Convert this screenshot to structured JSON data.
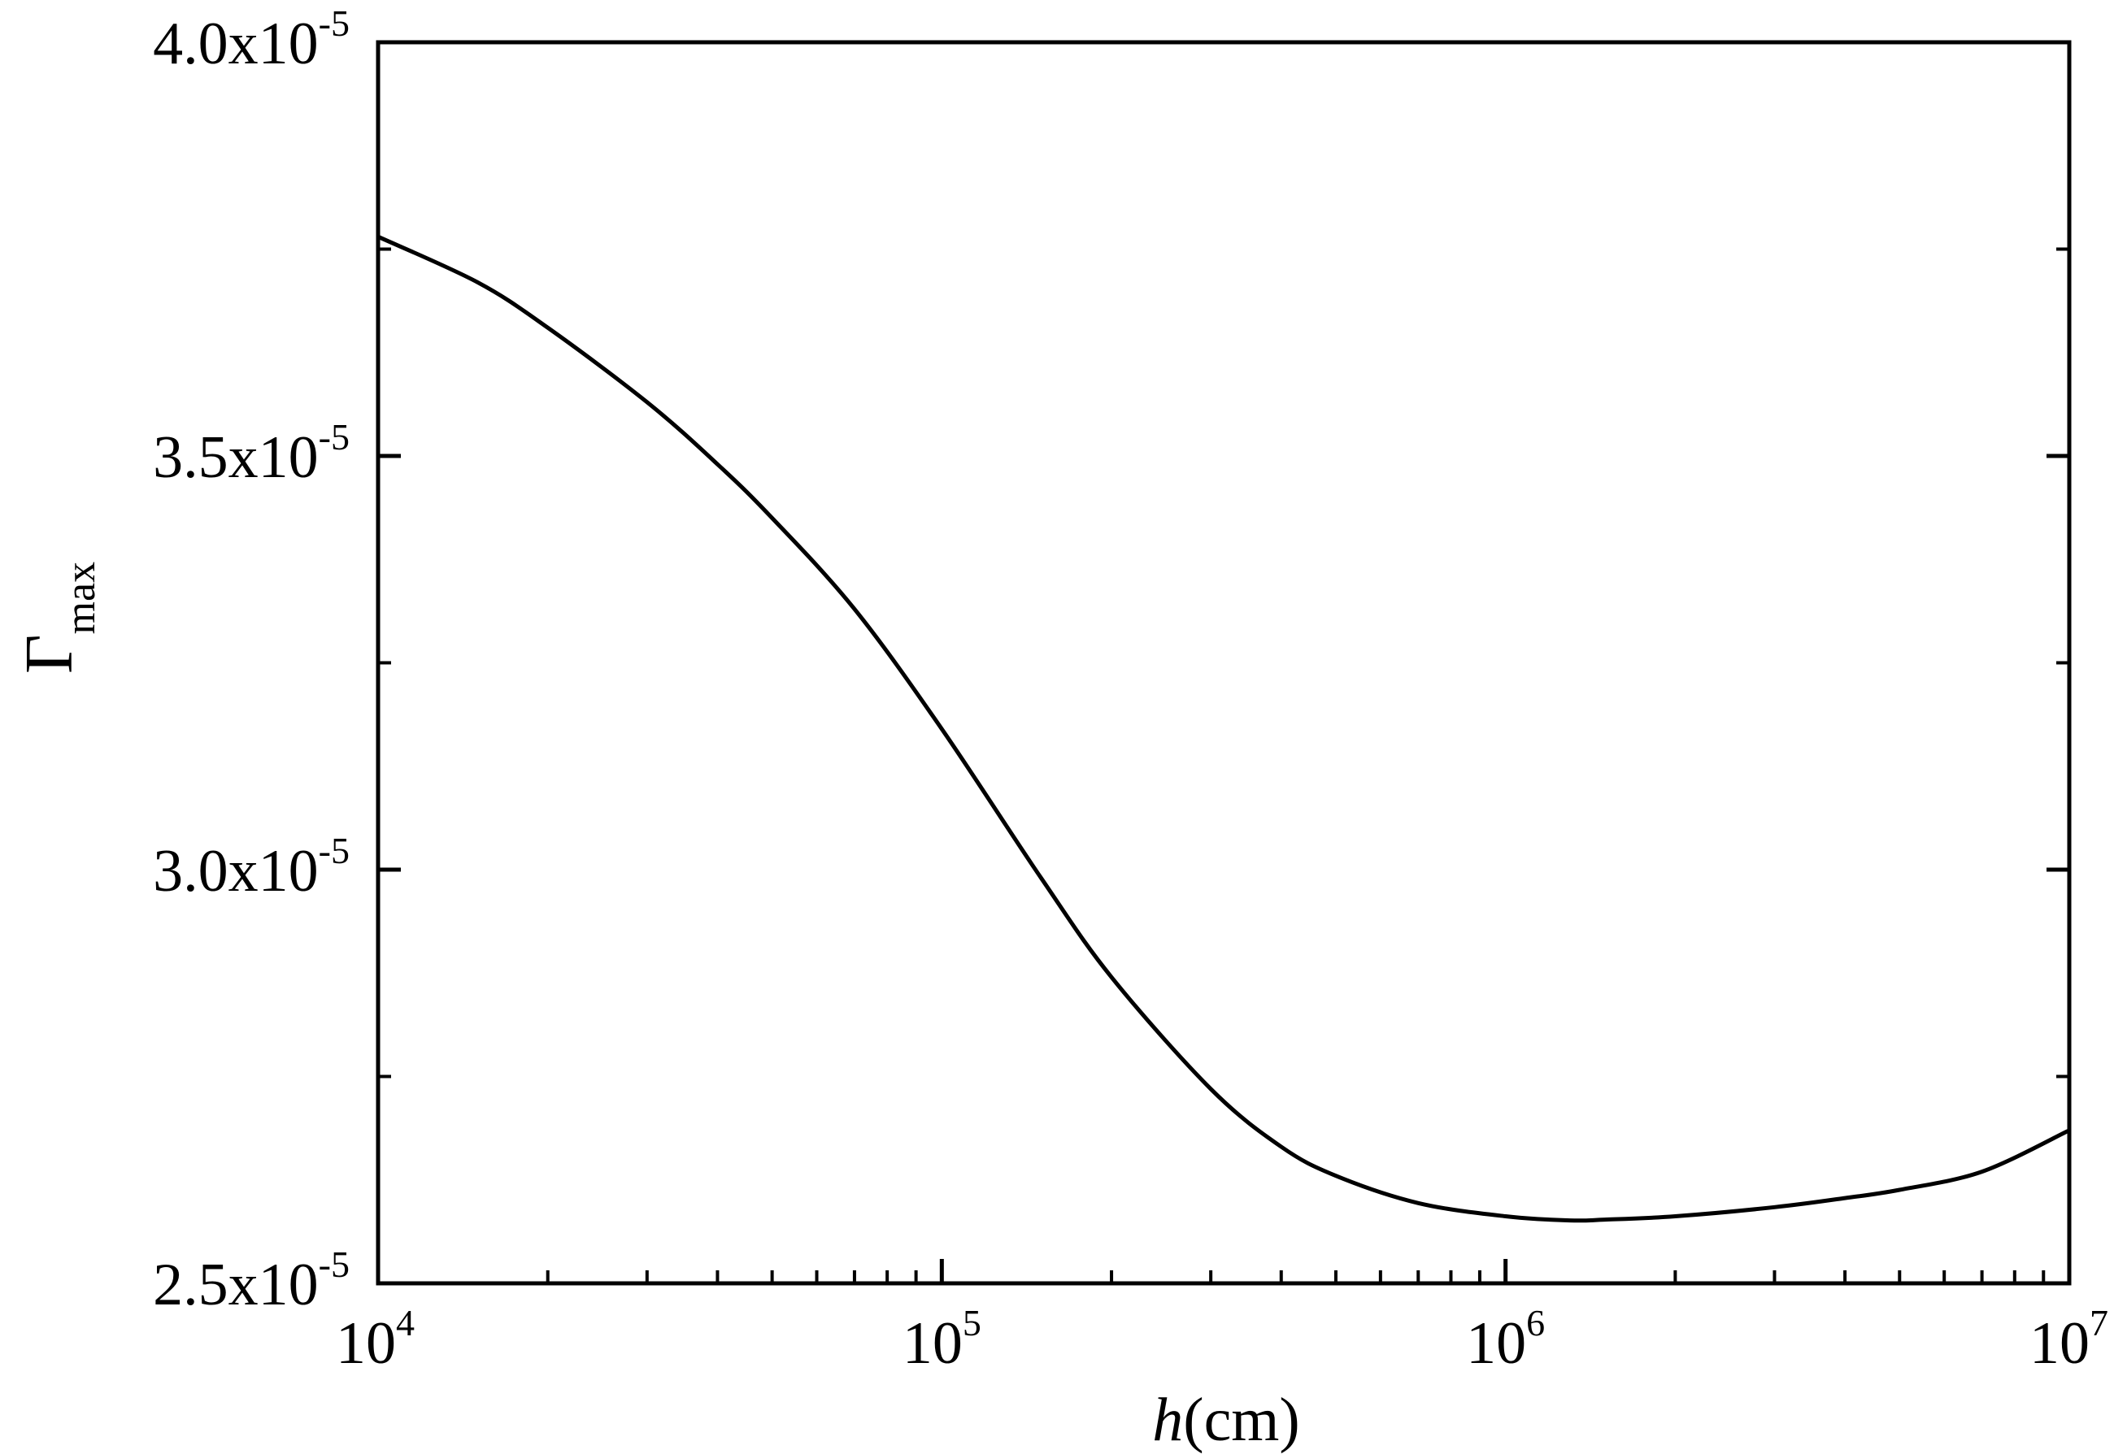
{
  "chart_data": {
    "type": "line",
    "title": "",
    "xlabel": "h(cm)",
    "xlabel_parts": {
      "var": "h",
      "unit": "(cm)"
    },
    "ylabel": "Γmax",
    "ylabel_parts": {
      "symbol": "Γ",
      "subscript": "max"
    },
    "x_scale": "log",
    "xlim": [
      10000,
      10000000
    ],
    "ylim": [
      2.5e-05,
      4e-05
    ],
    "grid": false,
    "legend": "none",
    "x_ticks": [
      {
        "value": 10000,
        "base": "10",
        "exp": "4"
      },
      {
        "value": 100000,
        "base": "10",
        "exp": "5"
      },
      {
        "value": 1000000,
        "base": "10",
        "exp": "6"
      },
      {
        "value": 10000000,
        "base": "10",
        "exp": "7"
      }
    ],
    "y_ticks": [
      {
        "value": 2.5e-05,
        "mantissa": "2.5x10",
        "exp": "-5"
      },
      {
        "value": 3e-05,
        "mantissa": "3.0x10",
        "exp": "-5"
      },
      {
        "value": 3.5e-05,
        "mantissa": "3.5x10",
        "exp": "-5"
      },
      {
        "value": 4e-05,
        "mantissa": "4.0x10",
        "exp": "-5"
      }
    ],
    "y_minor_ticks": [
      2.75e-05,
      3.25e-05,
      3.75e-05
    ],
    "series": [
      {
        "x": [
          10000,
          15000,
          20000,
          30000,
          40000,
          50000,
          70000,
          100000,
          150000,
          200000,
          300000,
          400000,
          500000,
          700000,
          1000000,
          1300000,
          1500000,
          2000000,
          3000000,
          4000000,
          5000000,
          7000000,
          10000000
        ],
        "y": [
          3.765e-05,
          3.71e-05,
          3.655e-05,
          3.565e-05,
          3.49e-05,
          3.425e-05,
          3.315e-05,
          3.17e-05,
          2.99e-05,
          2.87e-05,
          2.735e-05,
          2.665e-05,
          2.63e-05,
          2.597e-05,
          2.581e-05,
          2.576e-05,
          2.577e-05,
          2.581e-05,
          2.592e-05,
          2.603e-05,
          2.613e-05,
          2.635e-05,
          2.685e-05
        ]
      }
    ]
  }
}
